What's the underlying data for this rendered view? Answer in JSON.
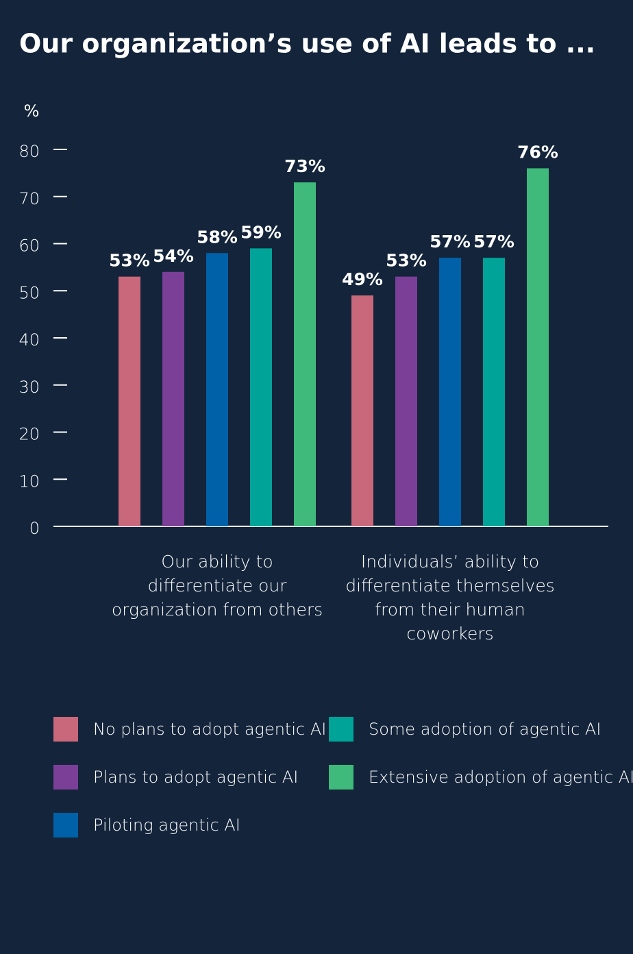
{
  "chart_data": {
    "type": "bar",
    "title": "Our organization’s use of AI leads to ...",
    "y_label": "%",
    "categories": [
      "Our ability to differentiate our organization from others",
      "Individuals’ ability to differentiate themselves from their human coworkers"
    ],
    "series": [
      {
        "name": "No plans to adopt agentic AI",
        "color": "#c9687a",
        "values": [
          53,
          49
        ],
        "value_labels": [
          "53%",
          "49%"
        ]
      },
      {
        "name": "Plans to  adopt agentic AI",
        "color": "#7b3f98",
        "values": [
          54,
          53
        ],
        "value_labels": [
          "54%",
          "53%"
        ]
      },
      {
        "name": "Piloting agentic AI",
        "color": "#0061a8",
        "values": [
          58,
          57
        ],
        "value_labels": [
          "58%",
          "57%"
        ]
      },
      {
        "name": "Some adoption of agentic AI",
        "color": "#00a398",
        "values": [
          59,
          57
        ],
        "value_labels": [
          "59%",
          "57%"
        ]
      },
      {
        "name": "Extensive adoption of agentic AI",
        "color": "#3fba7a",
        "values": [
          73,
          76
        ],
        "value_labels": [
          "73%",
          "76%"
        ]
      }
    ],
    "ylim": [
      0,
      80
    ],
    "yticks": [
      0,
      10,
      20,
      30,
      40,
      50,
      60,
      70,
      80
    ]
  }
}
